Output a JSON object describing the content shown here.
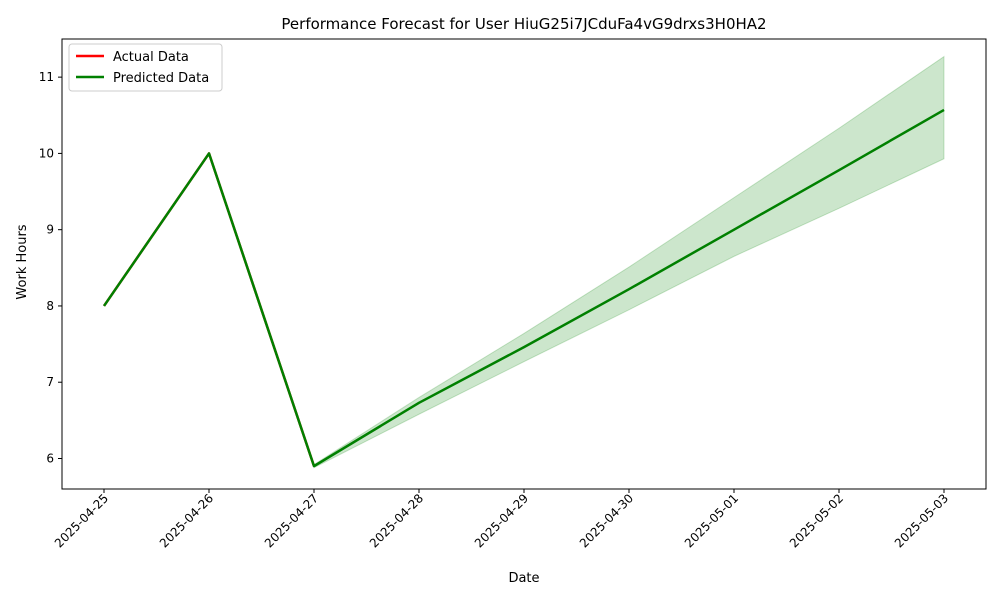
{
  "chart_data": {
    "type": "line",
    "title": "Performance Forecast for User HiuG25i7JCduFa4vG9drxs3H0HA2",
    "xlabel": "Date",
    "ylabel": "Work Hours",
    "x": [
      "2025-04-25",
      "2025-04-26",
      "2025-04-27",
      "2025-04-28",
      "2025-04-29",
      "2025-04-30",
      "2025-05-01",
      "2025-05-02",
      "2025-05-03"
    ],
    "xlim": [
      "2025-04-24 14:24",
      "2025-05-03 09:36"
    ],
    "ylim": [
      5.6,
      11.5
    ],
    "yticks": [
      6,
      7,
      8,
      9,
      10,
      11
    ],
    "grid": false,
    "legend_position": "top-left",
    "series": [
      {
        "name": "Actual Data",
        "color": "#ff0000",
        "x": [
          "2025-04-25",
          "2025-04-26",
          "2025-04-27"
        ],
        "values": [
          8.0,
          10.0,
          5.9
        ]
      },
      {
        "name": "Predicted Data",
        "color": "#008000",
        "x": [
          "2025-04-25",
          "2025-04-26",
          "2025-04-27",
          "2025-04-28",
          "2025-04-29",
          "2025-04-30",
          "2025-05-01",
          "2025-05-02",
          "2025-05-03"
        ],
        "values": [
          8.0,
          10.0,
          5.9,
          6.73,
          7.46,
          8.22,
          9.0,
          9.78,
          10.57
        ]
      }
    ],
    "confidence_band": {
      "color": "#008000",
      "x": [
        "2025-04-27",
        "2025-04-28",
        "2025-04-29",
        "2025-04-30",
        "2025-05-01",
        "2025-05-02",
        "2025-05-03"
      ],
      "lower": [
        5.88,
        6.58,
        7.27,
        7.95,
        8.65,
        9.28,
        9.93
      ],
      "upper": [
        5.92,
        6.8,
        7.64,
        8.51,
        9.42,
        10.33,
        11.27
      ]
    }
  }
}
